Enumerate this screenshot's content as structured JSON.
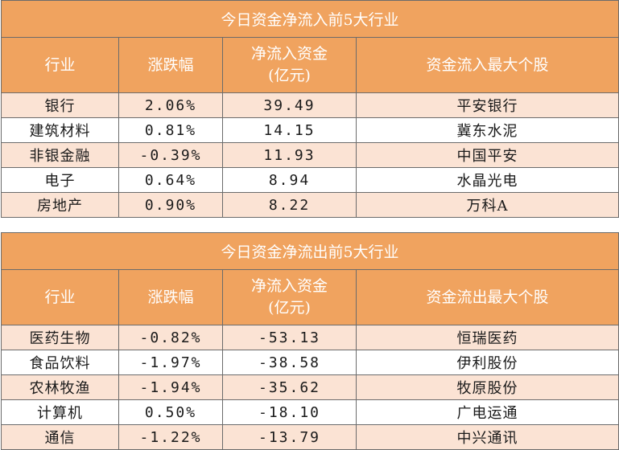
{
  "inflow": {
    "title": "今日资金净流入前5大行业",
    "headers": [
      "行业",
      "涨跌幅",
      "净流入资金\n(亿元)",
      "资金流入最大个股"
    ],
    "rows": [
      {
        "industry": "银行",
        "change": "2.06%",
        "net": "39.49",
        "top_stock": "平安银行"
      },
      {
        "industry": "建筑材料",
        "change": "0.81%",
        "net": "14.15",
        "top_stock": "冀东水泥"
      },
      {
        "industry": "非银金融",
        "change": "-0.39%",
        "net": "11.93",
        "top_stock": "中国平安"
      },
      {
        "industry": "电子",
        "change": "0.64%",
        "net": "8.94",
        "top_stock": "水晶光电"
      },
      {
        "industry": "房地产",
        "change": "0.90%",
        "net": "8.22",
        "top_stock": "万科A"
      }
    ]
  },
  "outflow": {
    "title": "今日资金净流出前5大行业",
    "headers": [
      "行业",
      "涨跌幅",
      "净流入资金\n(亿元)",
      "资金流出最大个股"
    ],
    "rows": [
      {
        "industry": "医药生物",
        "change": "-0.82%",
        "net": "-53.13",
        "top_stock": "恒瑞医药"
      },
      {
        "industry": "食品饮料",
        "change": "-1.97%",
        "net": "-38.58",
        "top_stock": "伊利股份"
      },
      {
        "industry": "农林牧渔",
        "change": "-1.94%",
        "net": "-35.62",
        "top_stock": "牧原股份"
      },
      {
        "industry": "计算机",
        "change": "0.50%",
        "net": "-18.10",
        "top_stock": "广电运通"
      },
      {
        "industry": "通信",
        "change": "-1.22%",
        "net": "-13.79",
        "top_stock": "中兴通讯"
      }
    ]
  }
}
